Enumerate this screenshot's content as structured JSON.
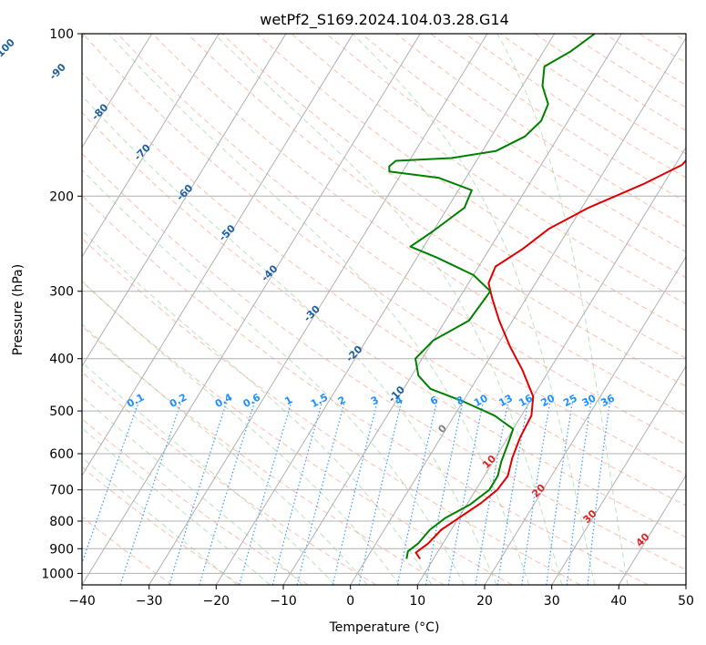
{
  "chart_data": {
    "type": "skew-t log-p",
    "title": "wetPf2_S169.2024.104.03.28.G14",
    "xlabel": "Temperature (°C)",
    "ylabel": "Pressure (hPa)",
    "xlim": [
      -40,
      50
    ],
    "ylim": [
      1050,
      100
    ],
    "y_scale": "log",
    "grid": true,
    "x_ticks": [
      -40,
      -30,
      -20,
      -10,
      0,
      10,
      20,
      30,
      40,
      50
    ],
    "y_ticks": [
      100,
      200,
      300,
      400,
      500,
      600,
      700,
      800,
      900,
      1000
    ],
    "isotherm_labels": [
      -100,
      -90,
      -80,
      -70,
      -60,
      -50,
      -40,
      -30,
      -20,
      -10,
      0,
      10,
      20,
      30,
      40
    ],
    "mixing_ratio_labels": [
      "0.1",
      "0.2",
      "0.4",
      "0.6",
      "1",
      "1.5",
      "2",
      "3",
      "4",
      "6",
      "8",
      "10",
      "13",
      "16",
      "20",
      "25",
      "30",
      "36"
    ],
    "colors": {
      "temperature": "#e00000",
      "dewpoint": "#008000",
      "isotherm_label": "#1f5fa0",
      "warm_isotherm_label": "#d62728",
      "zero_isotherm_label": "#808080",
      "mixing_ratio": "#1e90ff",
      "dry_adiabat": "#fa8060",
      "moist_adiabat": "#3cb043",
      "grid": "#b0b0b0"
    },
    "series": [
      {
        "kind": "temperature",
        "points": [
          {
            "p": 940,
            "t": 8.0
          },
          {
            "p": 915,
            "t": 6.8
          },
          {
            "p": 880,
            "t": 7.8
          },
          {
            "p": 830,
            "t": 8.5
          },
          {
            "p": 790,
            "t": 10.0
          },
          {
            "p": 740,
            "t": 12.0
          },
          {
            "p": 700,
            "t": 13.2
          },
          {
            "p": 660,
            "t": 13.5
          },
          {
            "p": 610,
            "t": 12.5
          },
          {
            "p": 560,
            "t": 11.8
          },
          {
            "p": 510,
            "t": 11.5
          },
          {
            "p": 470,
            "t": 10.0
          },
          {
            "p": 420,
            "t": 6.0
          },
          {
            "p": 380,
            "t": 2.0
          },
          {
            "p": 340,
            "t": -2.0
          },
          {
            "p": 310,
            "t": -5.0
          },
          {
            "p": 290,
            "t": -7.0
          },
          {
            "p": 270,
            "t": -7.5
          },
          {
            "p": 250,
            "t": -5.0
          },
          {
            "p": 230,
            "t": -3.0
          },
          {
            "p": 210,
            "t": 1.0
          },
          {
            "p": 190,
            "t": 7.0
          },
          {
            "p": 175,
            "t": 11.0
          },
          {
            "p": 160,
            "t": 12.0
          },
          {
            "p": 150,
            "t": 12.5
          },
          {
            "p": 140,
            "t": 14.5
          },
          {
            "p": 128,
            "t": 18.0
          },
          {
            "p": 115,
            "t": 23.0
          },
          {
            "p": 105,
            "t": 25.5
          },
          {
            "p": 100,
            "t": 26.5
          }
        ]
      },
      {
        "kind": "dewpoint",
        "points": [
          {
            "p": 940,
            "t": 6.0
          },
          {
            "p": 910,
            "t": 5.5
          },
          {
            "p": 880,
            "t": 6.3
          },
          {
            "p": 830,
            "t": 6.8
          },
          {
            "p": 790,
            "t": 8.0
          },
          {
            "p": 745,
            "t": 10.5
          },
          {
            "p": 700,
            "t": 12.0
          },
          {
            "p": 660,
            "t": 12.0
          },
          {
            "p": 620,
            "t": 11.2
          },
          {
            "p": 570,
            "t": 10.5
          },
          {
            "p": 540,
            "t": 10.0
          },
          {
            "p": 510,
            "t": 6.0
          },
          {
            "p": 480,
            "t": 0.0
          },
          {
            "p": 455,
            "t": -6.0
          },
          {
            "p": 430,
            "t": -9.0
          },
          {
            "p": 400,
            "t": -11.0
          },
          {
            "p": 370,
            "t": -10.0
          },
          {
            "p": 340,
            "t": -6.5
          },
          {
            "p": 300,
            "t": -6.0
          },
          {
            "p": 280,
            "t": -10.0
          },
          {
            "p": 260,
            "t": -17.0
          },
          {
            "p": 248,
            "t": -22.0
          },
          {
            "p": 232,
            "t": -20.0
          },
          {
            "p": 210,
            "t": -17.5
          },
          {
            "p": 195,
            "t": -18.0
          },
          {
            "p": 185,
            "t": -24.0
          },
          {
            "p": 180,
            "t": -32.0
          },
          {
            "p": 176,
            "t": -32.5
          },
          {
            "p": 172,
            "t": -32.0
          },
          {
            "p": 170,
            "t": -24.0
          },
          {
            "p": 165,
            "t": -18.0
          },
          {
            "p": 155,
            "t": -15.0
          },
          {
            "p": 145,
            "t": -14.0
          },
          {
            "p": 135,
            "t": -14.5
          },
          {
            "p": 125,
            "t": -17.0
          },
          {
            "p": 115,
            "t": -18.5
          },
          {
            "p": 108,
            "t": -16.0
          },
          {
            "p": 100,
            "t": -14.0
          }
        ]
      }
    ]
  }
}
